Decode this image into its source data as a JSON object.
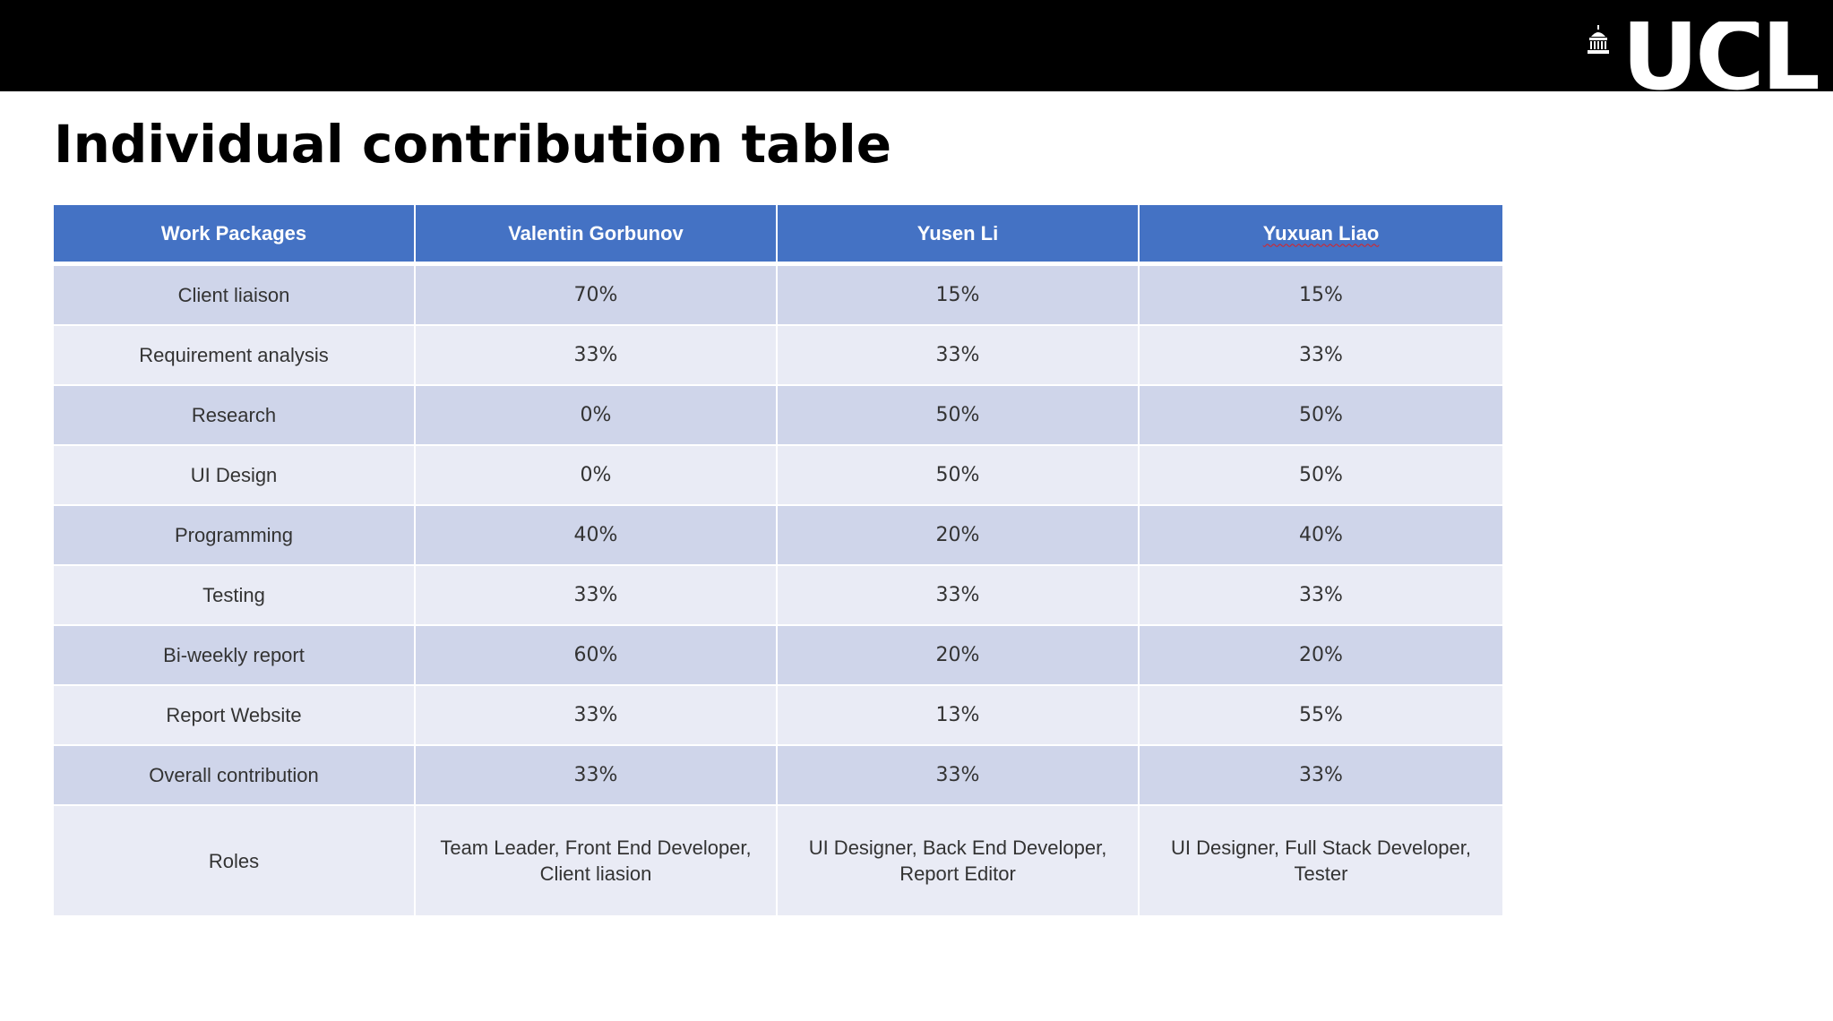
{
  "logo": {
    "text": "UCL",
    "icon": "portico-icon"
  },
  "title": "Individual contribution table",
  "table": {
    "header": {
      "work_packages": "Work Packages",
      "member1": "Valentin Gorbunov",
      "member2": "Yusen Li",
      "member3": "Yuxuan Liao"
    },
    "rows": [
      {
        "package": "Client liaison",
        "m1": "70%",
        "m2": "15%",
        "m3": "15%"
      },
      {
        "package": "Requirement analysis",
        "m1": "33%",
        "m2": "33%",
        "m3": "33%"
      },
      {
        "package": "Research",
        "m1": "0%",
        "m2": "50%",
        "m3": "50%"
      },
      {
        "package": "UI Design",
        "m1": "0%",
        "m2": "50%",
        "m3": "50%"
      },
      {
        "package": "Programming",
        "m1": "40%",
        "m2": "20%",
        "m3": "40%"
      },
      {
        "package": "Testing",
        "m1": "33%",
        "m2": "33%",
        "m3": "33%"
      },
      {
        "package": "Bi-weekly report",
        "m1": "60%",
        "m2": "20%",
        "m3": "20%"
      },
      {
        "package": "Report Website",
        "m1": "33%",
        "m2": "13%",
        "m3": "55%"
      },
      {
        "package": "Overall contribution",
        "m1": "33%",
        "m2": "33%",
        "m3": "33%"
      }
    ],
    "roles": {
      "label": "Roles",
      "m1": {
        "line1": "Team Leader, Front End Developer,",
        "line2": "Client liasion"
      },
      "m2": {
        "line1": "UI Designer, Back End Developer,",
        "line2": "Report Editor"
      },
      "m3": {
        "line1": "UI Designer, Full Stack Developer,",
        "line2": "Tester"
      }
    }
  },
  "colors": {
    "header_bg": "#4472c4",
    "row_odd": "#cfd5ea",
    "row_even": "#e9ebf5",
    "top_bar": "#000000"
  }
}
